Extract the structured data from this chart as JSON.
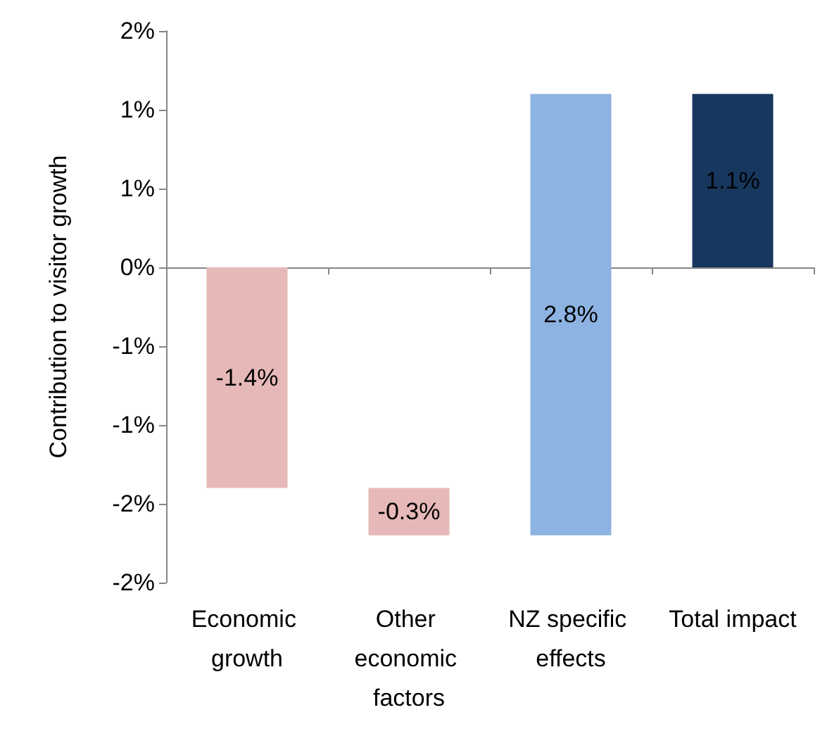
{
  "chart_data": {
    "type": "bar",
    "ylabel": "Contribution to visitor growth",
    "categories": [
      "Economic growth",
      "Other economic factors",
      "NZ specific effects",
      "Total impact"
    ],
    "values": [
      -1.4,
      -0.3,
      2.8,
      1.1
    ],
    "base": [
      0,
      -1.4,
      -1.7,
      0
    ],
    "colors": [
      "#e6b9b8",
      "#e6b9b8",
      "#8db3e2",
      "#17375e"
    ],
    "value_labels": [
      "-1.4%",
      "-0.3%",
      "2.8%",
      "1.1%"
    ],
    "ylim": [
      -2,
      1.5
    ],
    "yticks": [
      {
        "value": 1.5,
        "label": "2%"
      },
      {
        "value": 1,
        "label": "1%"
      },
      {
        "value": 0.5,
        "label": "1%"
      },
      {
        "value": 0,
        "label": "0%"
      },
      {
        "value": -0.5,
        "label": "-1%"
      },
      {
        "value": -1,
        "label": "-1%"
      },
      {
        "value": -1.5,
        "label": "-2%"
      },
      {
        "value": -2,
        "label": "-2%"
      }
    ]
  }
}
